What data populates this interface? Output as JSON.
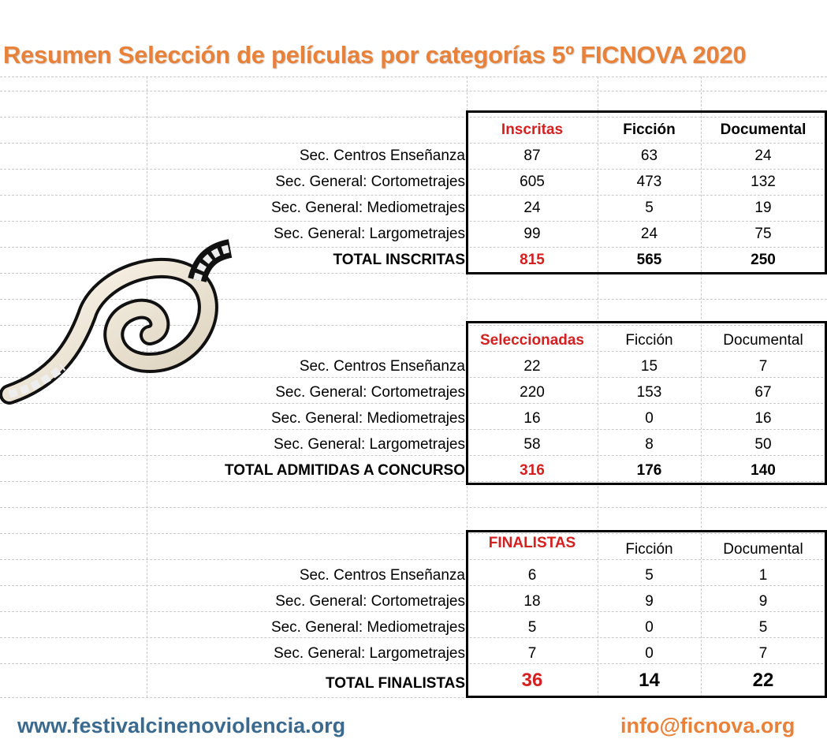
{
  "title": "Resumen Selección de películas por categorías 5º FICNOVA 2020",
  "tables": [
    {
      "headers": [
        "Inscritas",
        "Ficción",
        "Documental"
      ],
      "rows": [
        {
          "label": "Sec. Centros Enseñanza",
          "values": [
            87,
            63,
            24
          ]
        },
        {
          "label": "Sec. General: Cortometrajes",
          "values": [
            605,
            473,
            132
          ]
        },
        {
          "label": "Sec. General: Mediometrajes",
          "values": [
            24,
            5,
            19
          ]
        },
        {
          "label": "Sec. General: Largometrajes",
          "values": [
            99,
            24,
            75
          ]
        }
      ],
      "total": {
        "label": "TOTAL INSCRITAS",
        "values": [
          815,
          565,
          250
        ]
      }
    },
    {
      "headers": [
        "Seleccionadas",
        "Ficción",
        "Documental"
      ],
      "rows": [
        {
          "label": "Sec. Centros Enseñanza",
          "values": [
            22,
            15,
            7
          ]
        },
        {
          "label": "Sec. General: Cortometrajes",
          "values": [
            220,
            153,
            67
          ]
        },
        {
          "label": "Sec. General: Mediometrajes",
          "values": [
            16,
            0,
            16
          ]
        },
        {
          "label": "Sec. General: Largometrajes",
          "values": [
            58,
            8,
            50
          ]
        }
      ],
      "total": {
        "label": "TOTAL ADMITIDAS A CONCURSO",
        "values": [
          316,
          176,
          140
        ]
      }
    },
    {
      "headers": [
        "FINALISTAS",
        "Ficción",
        "Documental"
      ],
      "rows": [
        {
          "label": "Sec. Centros Enseñanza",
          "values": [
            6,
            5,
            1
          ]
        },
        {
          "label": "Sec. General: Cortometrajes",
          "values": [
            18,
            9,
            9
          ]
        },
        {
          "label": "Sec. General: Mediometrajes",
          "values": [
            5,
            0,
            5
          ]
        },
        {
          "label": "Sec. General: Largometrajes",
          "values": [
            7,
            0,
            7
          ]
        }
      ],
      "total": {
        "label": "TOTAL FINALISTAS",
        "values": [
          36,
          14,
          22
        ]
      }
    }
  ],
  "footer": {
    "website": "www.festivalcinenoviolencia.org",
    "email": "info@ficnova.org"
  }
}
